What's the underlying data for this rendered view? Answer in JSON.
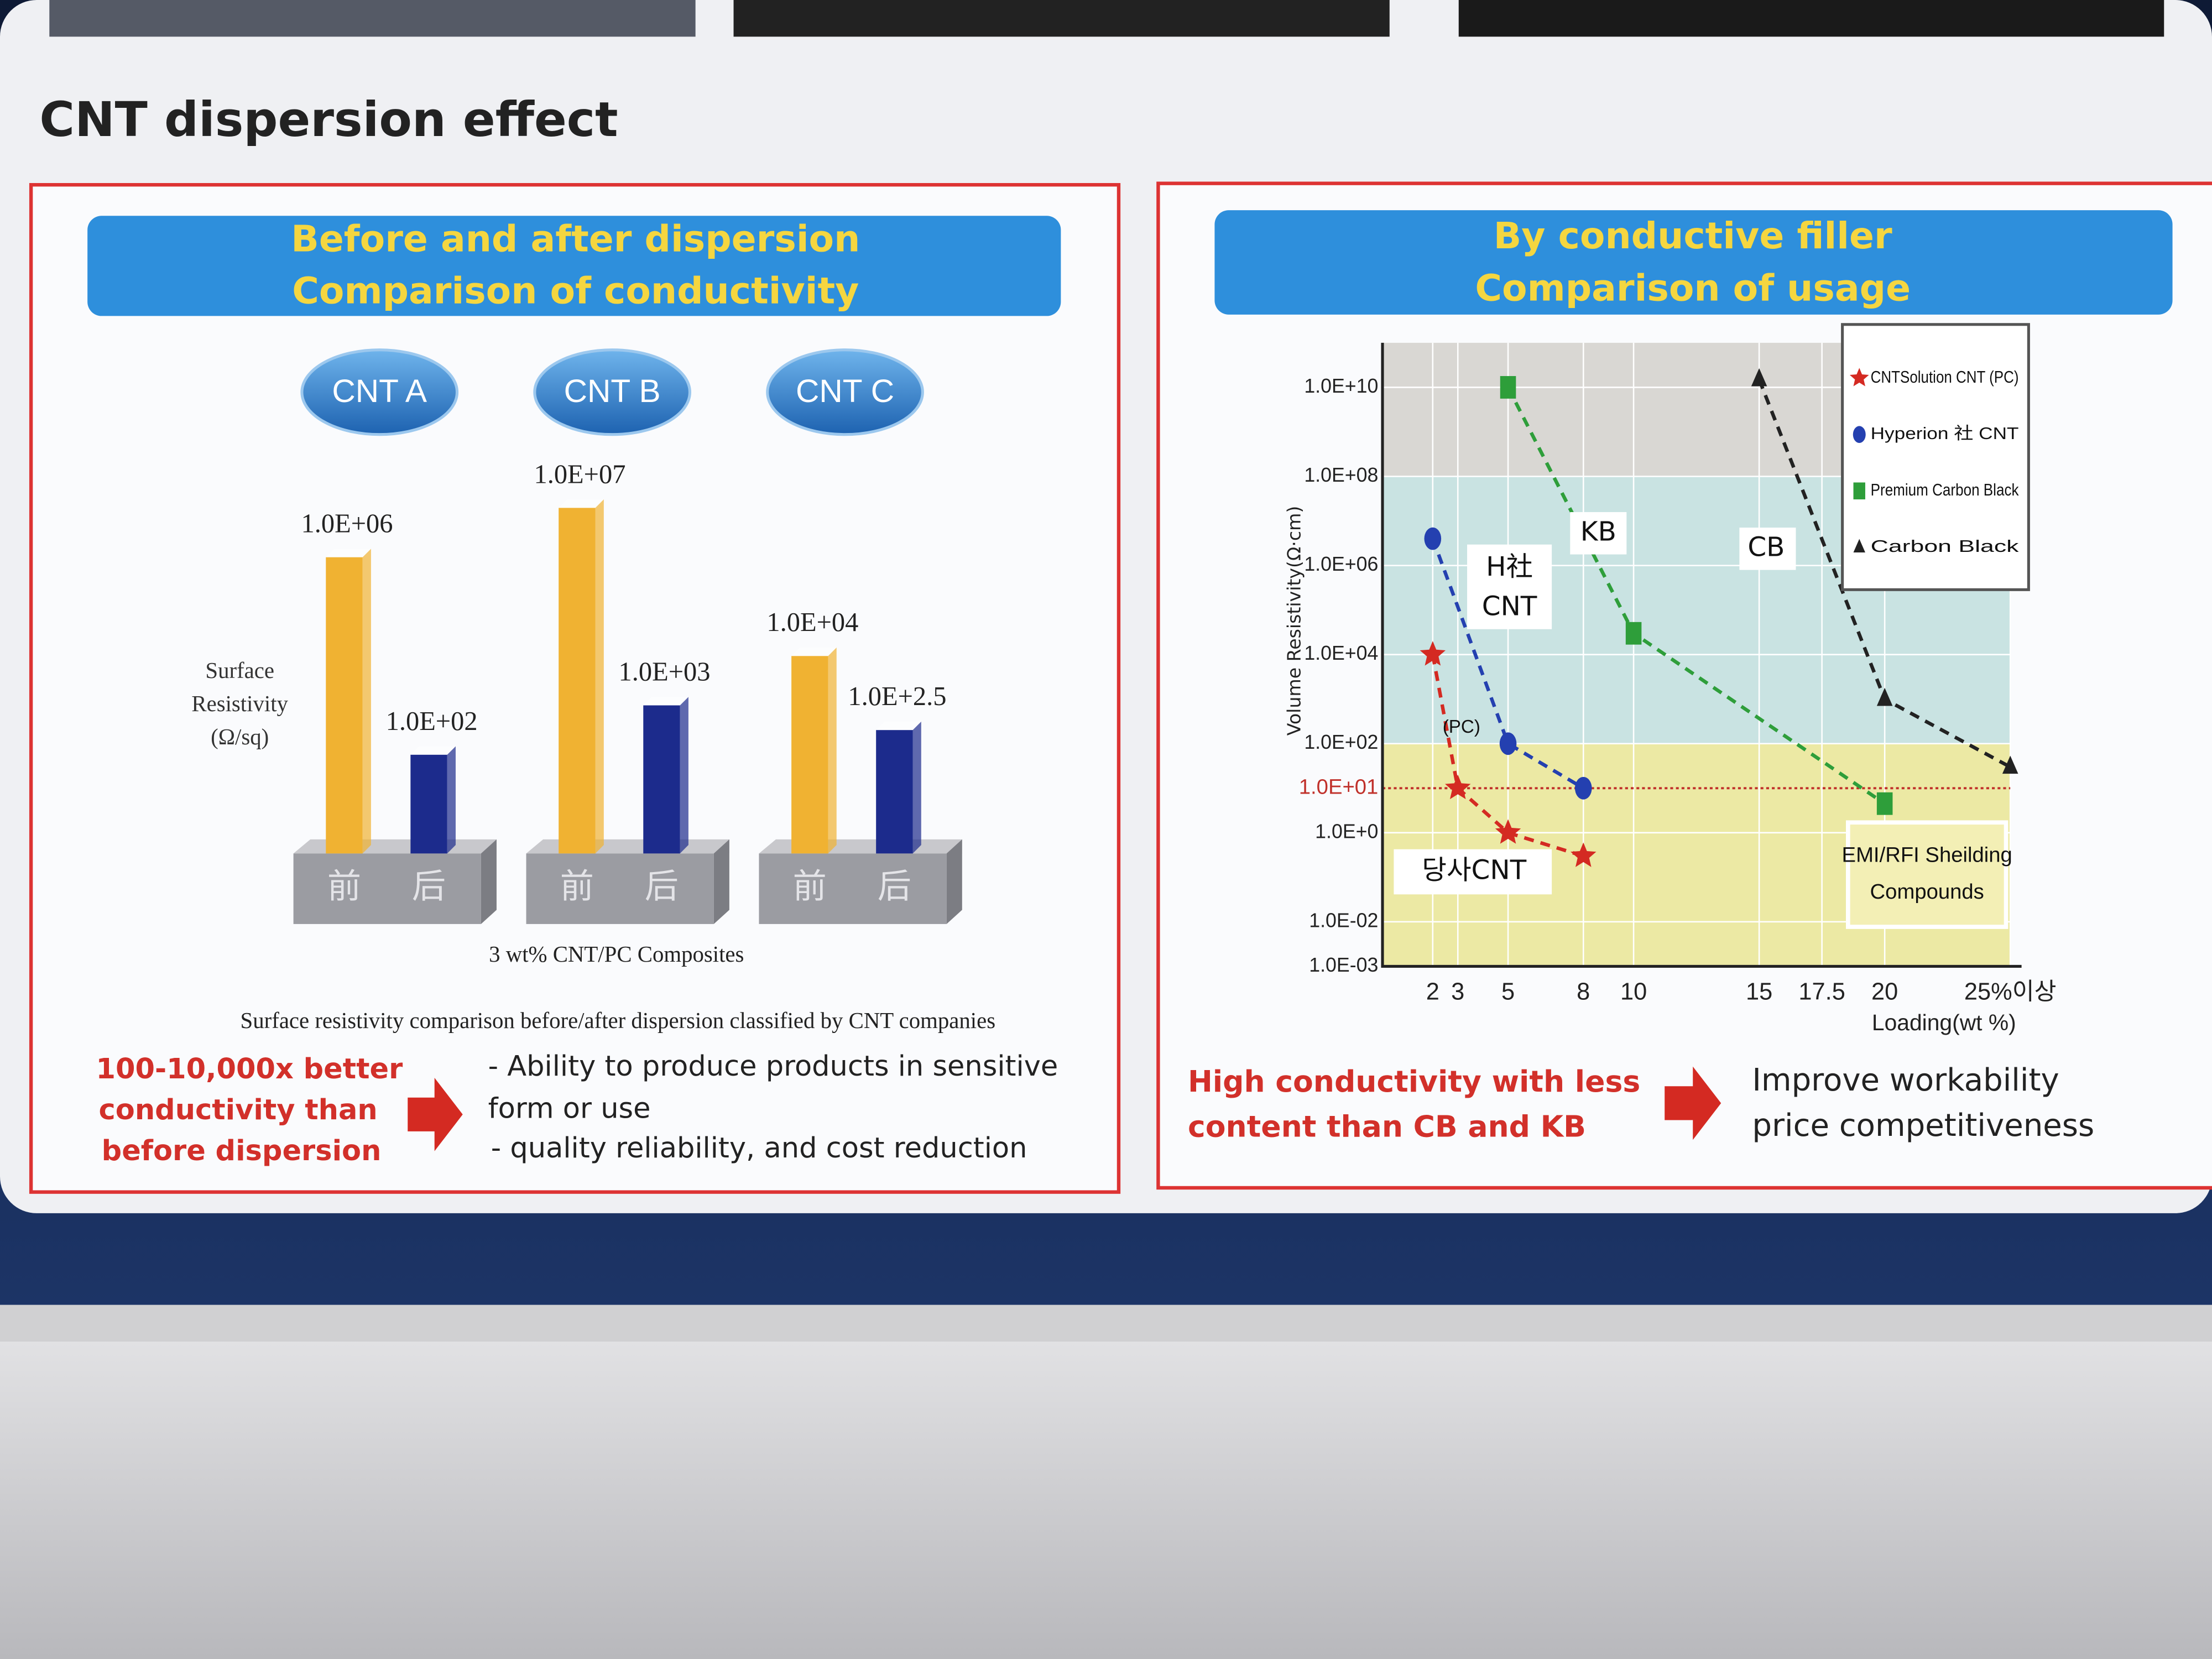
{
  "title": "CNT dispersion effect",
  "chart_data": [
    {
      "type": "bar",
      "log_scale": true,
      "title": [
        "Before and after dispersion",
        "Comparison of conductivity"
      ],
      "categories": [
        "CNT A",
        "CNT B",
        "CNT C"
      ],
      "series": [
        {
          "name": "前",
          "color": "#f0b232",
          "values": [
            1000000,
            10000000,
            10000
          ],
          "value_labels": [
            "1.0E+06",
            "1.0E+07",
            "1.0E+04"
          ]
        },
        {
          "name": "后",
          "color": "#1c2b8c",
          "values": [
            100,
            1000,
            316.23
          ],
          "value_labels": [
            "1.0E+02",
            "1.0E+03",
            "1.0E+2.5"
          ]
        }
      ],
      "y_label": [
        "Surface",
        "Resistivity",
        "(Ω/sq)"
      ],
      "x_label": "3 wt% CNT/PC Composites",
      "caption": "Surface resistivity comparison before/after dispersion classified by CNT companies"
    },
    {
      "type": "scatter",
      "log_scale": true,
      "grid": true,
      "legend": "top-right",
      "title": [
        "By conductive filler",
        "Comparison of usage"
      ],
      "x_label": "Loading(wt %)",
      "y_label": "Volume Resistivity(Ω·cm)",
      "xlim": [
        0,
        25
      ],
      "ylim": [
        0.001,
        100000000000
      ],
      "xticks": [
        2,
        3,
        5,
        8,
        10,
        15,
        17.5,
        20,
        {
          "value": 25,
          "label": "25%이상"
        }
      ],
      "yticks": [
        {
          "value": 0.001,
          "label": "1.0E-03"
        },
        {
          "value": 0.01,
          "label": "1.0E-02"
        },
        {
          "value": 1,
          "label": "1.0E+0"
        },
        {
          "value": 100,
          "label": "1.0E+02"
        },
        {
          "value": 10000,
          "label": "1.0E+04"
        },
        {
          "value": 1000000,
          "label": "1.0E+06"
        },
        {
          "value": 100000000,
          "label": "1.0E+08"
        },
        {
          "value": 10000000000,
          "label": "1.0E+10"
        }
      ],
      "reference_line": {
        "value": 10,
        "label": "1.0E+01",
        "color": "#c0302a"
      },
      "bands": [
        {
          "from": 100000000,
          "to": 100000000000,
          "color": "#d9d7d3"
        },
        {
          "from": 100,
          "to": 100000000,
          "color": "#c9e3e2"
        },
        {
          "from": 0.001,
          "to": 100,
          "color": "#ece9a4"
        }
      ],
      "series": [
        {
          "name": "CNTSolution CNT (PC)",
          "color": "#d42a22",
          "marker": "star",
          "x": [
            2,
            3,
            5,
            8
          ],
          "values": [
            10000,
            10,
            1,
            0.3
          ]
        },
        {
          "name": "Hyperion 社 CNT",
          "color": "#2440b0",
          "marker": "circle",
          "x": [
            2,
            5,
            8
          ],
          "values": [
            4000000,
            100,
            10
          ]
        },
        {
          "name": "Premium Carbon Black",
          "color": "#2e9e3a",
          "marker": "square",
          "x": [
            5,
            10,
            20
          ],
          "values": [
            10000000000,
            30000,
            4.5
          ]
        },
        {
          "name": "Carbon Black",
          "color": "#222222",
          "marker": "triangle",
          "x": [
            15,
            20,
            25
          ],
          "values": [
            15000000000,
            1000,
            30
          ]
        }
      ],
      "annotations": [
        "KB",
        "CB",
        "H社",
        "CNT",
        "(PC)",
        "당사CNT",
        "EMI/RFI Sheilding",
        "Compounds"
      ]
    }
  ],
  "left_panel": {
    "conclusion": [
      "100-10,000x better",
      "conductivity than",
      "before dispersion"
    ],
    "benefits": [
      "- Ability to produce products in sensitive",
      "form or use",
      "- quality reliability, and cost reduction"
    ]
  },
  "right_panel": {
    "conclusion": [
      "High conductivity with less",
      "content than CB and KB"
    ],
    "benefits": [
      "Improve workability",
      "price competitiveness"
    ]
  }
}
